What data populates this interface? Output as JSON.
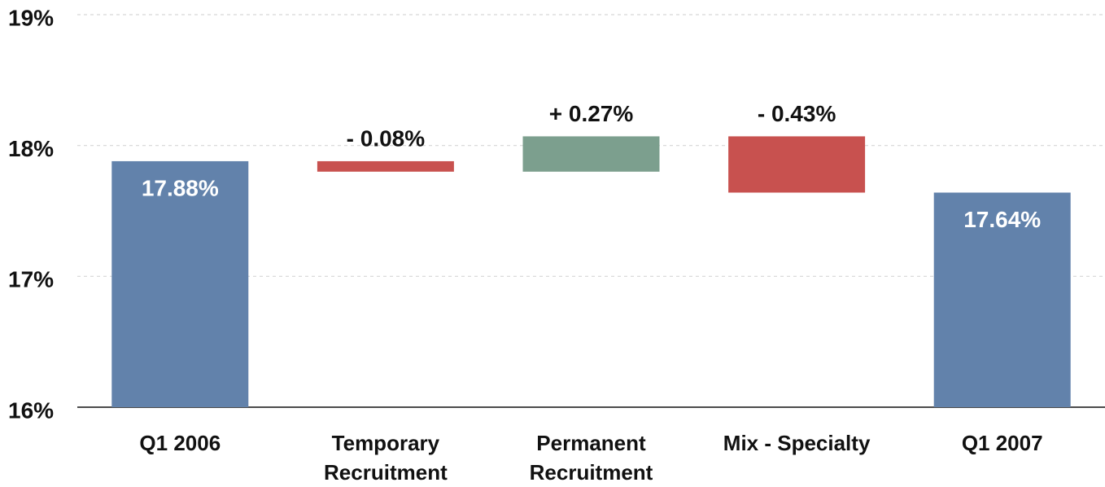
{
  "chart_data": {
    "type": "waterfall",
    "categories": [
      "Q1 2006",
      "Temporary Recruitment",
      "Permanent Recruitment",
      "Mix - Specialty",
      "Q1 2007"
    ],
    "values": [
      17.88,
      -0.08,
      0.27,
      -0.43,
      17.64
    ],
    "value_labels": [
      "17.88%",
      "- 0.08%",
      "+ 0.27%",
      "- 0.43%",
      "17.64%"
    ],
    "measure": [
      "total",
      "relative",
      "relative",
      "relative",
      "total"
    ],
    "colors": {
      "total": "#6282ab",
      "increase": "#7c9f8e",
      "decrease": "#c8514f"
    },
    "ylim": [
      16,
      19
    ],
    "yticks": [
      {
        "value": 16,
        "label": "16%"
      },
      {
        "value": 17,
        "label": "17%"
      },
      {
        "value": 18,
        "label": "18%"
      },
      {
        "value": 19,
        "label": "19%"
      }
    ],
    "grid": true
  }
}
